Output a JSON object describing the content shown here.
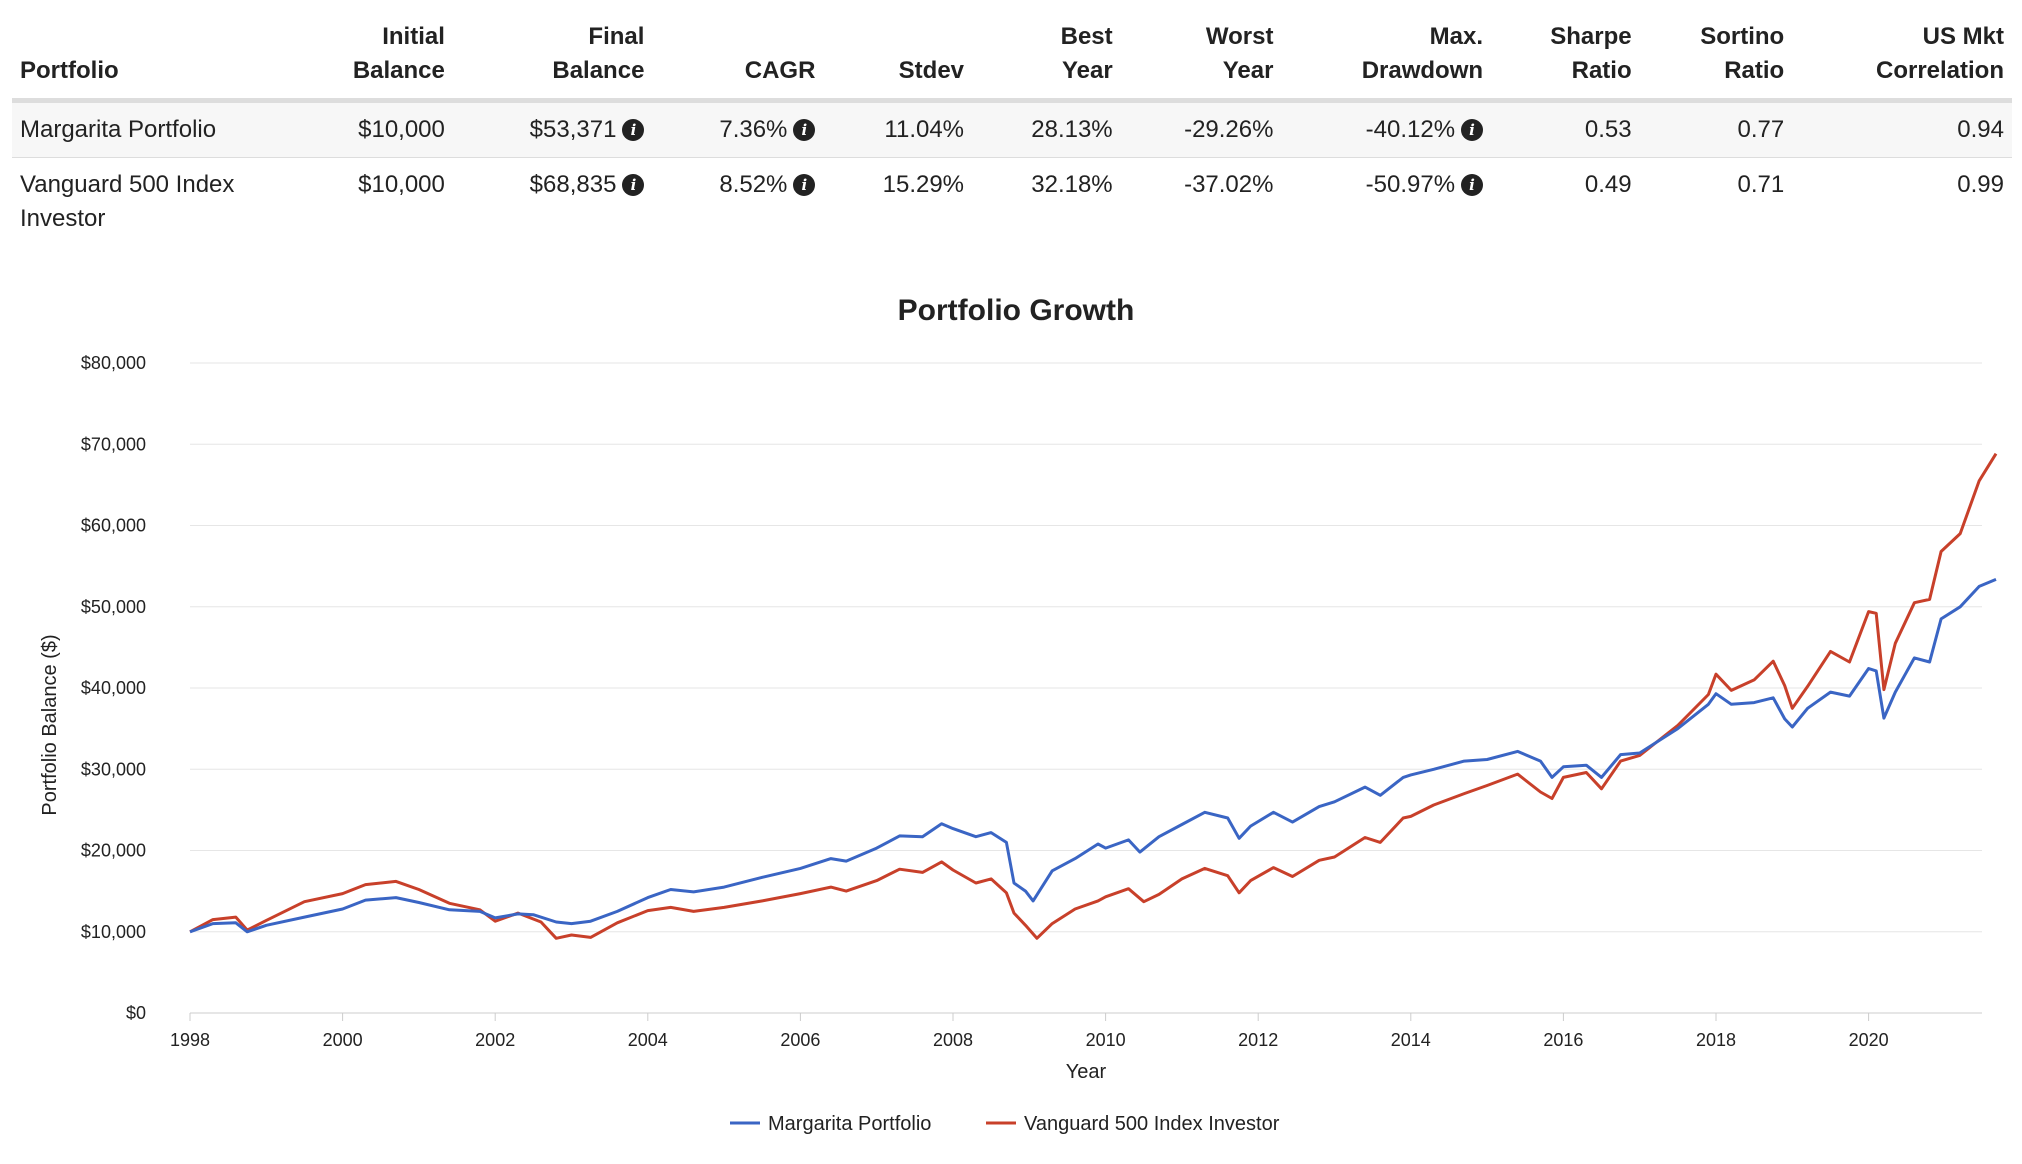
{
  "table": {
    "headers": [
      [
        "",
        "Portfolio"
      ],
      [
        "Initial",
        "Balance"
      ],
      [
        "Final",
        "Balance"
      ],
      [
        "",
        "CAGR"
      ],
      [
        "",
        "Stdev"
      ],
      [
        "Best",
        "Year"
      ],
      [
        "Worst",
        "Year"
      ],
      [
        "Max.",
        "Drawdown"
      ],
      [
        "Sharpe",
        "Ratio"
      ],
      [
        "Sortino",
        "Ratio"
      ],
      [
        "US Mkt",
        "Correlation"
      ]
    ],
    "rows": [
      {
        "portfolio": "Margarita Portfolio",
        "initial": "$10,000",
        "final": "$53,371",
        "cagr": "7.36%",
        "stdev": "11.04%",
        "best": "28.13%",
        "worst": "-29.26%",
        "maxdd": "-40.12%",
        "sharpe": "0.53",
        "sortino": "0.77",
        "corr": "0.94"
      },
      {
        "portfolio": "Vanguard 500 Index Investor",
        "initial": "$10,000",
        "final": "$68,835",
        "cagr": "8.52%",
        "stdev": "15.29%",
        "best": "32.18%",
        "worst": "-37.02%",
        "maxdd": "-50.97%",
        "sharpe": "0.49",
        "sortino": "0.71",
        "corr": "0.99"
      }
    ],
    "info_icon_glyph": "i"
  },
  "chart_data": {
    "type": "line",
    "title": "Portfolio Growth",
    "xlabel": "Year",
    "ylabel": "Portfolio Balance ($)",
    "xlim": [
      1998,
      2021.7
    ],
    "ylim": [
      0,
      80000
    ],
    "x_ticks": [
      "1998",
      "2000",
      "2002",
      "2004",
      "2006",
      "2008",
      "2010",
      "2012",
      "2014",
      "2016",
      "2018",
      "2020"
    ],
    "y_ticks": [
      "$0",
      "$10,000",
      "$20,000",
      "$30,000",
      "$40,000",
      "$50,000",
      "$60,000",
      "$70,000",
      "$80,000"
    ],
    "grid": true,
    "legend_position": "bottom",
    "series": [
      {
        "name": "Margarita Portfolio",
        "color": "#3a65c4",
        "points": [
          [
            1998,
            10000
          ],
          [
            1998.3,
            11000
          ],
          [
            1998.6,
            11100
          ],
          [
            1998.75,
            10000
          ],
          [
            1999,
            10800
          ],
          [
            1999.5,
            11800
          ],
          [
            2000,
            12800
          ],
          [
            2000.3,
            13900
          ],
          [
            2000.7,
            14200
          ],
          [
            2001,
            13600
          ],
          [
            2001.4,
            12700
          ],
          [
            2001.8,
            12500
          ],
          [
            2002,
            11700
          ],
          [
            2002.3,
            12200
          ],
          [
            2002.5,
            12100
          ],
          [
            2002.8,
            11200
          ],
          [
            2003,
            11000
          ],
          [
            2003.25,
            11300
          ],
          [
            2003.6,
            12500
          ],
          [
            2004,
            14200
          ],
          [
            2004.3,
            15200
          ],
          [
            2004.6,
            14900
          ],
          [
            2005,
            15500
          ],
          [
            2005.5,
            16700
          ],
          [
            2006,
            17800
          ],
          [
            2006.4,
            19000
          ],
          [
            2006.6,
            18700
          ],
          [
            2007,
            20300
          ],
          [
            2007.3,
            21800
          ],
          [
            2007.6,
            21700
          ],
          [
            2007.85,
            23300
          ],
          [
            2008,
            22700
          ],
          [
            2008.3,
            21700
          ],
          [
            2008.5,
            22200
          ],
          [
            2008.7,
            21000
          ],
          [
            2008.8,
            16000
          ],
          [
            2008.95,
            15000
          ],
          [
            2009.05,
            13800
          ],
          [
            2009.3,
            17500
          ],
          [
            2009.6,
            19000
          ],
          [
            2009.9,
            20800
          ],
          [
            2010,
            20300
          ],
          [
            2010.3,
            21300
          ],
          [
            2010.45,
            19800
          ],
          [
            2010.7,
            21700
          ],
          [
            2011,
            23200
          ],
          [
            2011.3,
            24700
          ],
          [
            2011.6,
            24000
          ],
          [
            2011.75,
            21500
          ],
          [
            2011.9,
            23000
          ],
          [
            2012.2,
            24700
          ],
          [
            2012.45,
            23500
          ],
          [
            2012.8,
            25400
          ],
          [
            2013,
            26000
          ],
          [
            2013.4,
            27800
          ],
          [
            2013.6,
            26800
          ],
          [
            2013.9,
            29000
          ],
          [
            2014,
            29300
          ],
          [
            2014.3,
            30000
          ],
          [
            2014.7,
            31000
          ],
          [
            2015,
            31200
          ],
          [
            2015.4,
            32200
          ],
          [
            2015.7,
            31000
          ],
          [
            2015.85,
            29000
          ],
          [
            2016,
            30300
          ],
          [
            2016.3,
            30500
          ],
          [
            2016.5,
            29000
          ],
          [
            2016.75,
            31800
          ],
          [
            2017,
            32000
          ],
          [
            2017.5,
            35000
          ],
          [
            2017.9,
            38000
          ],
          [
            2018,
            39300
          ],
          [
            2018.2,
            38000
          ],
          [
            2018.5,
            38200
          ],
          [
            2018.75,
            38800
          ],
          [
            2018.9,
            36200
          ],
          [
            2019,
            35200
          ],
          [
            2019.2,
            37500
          ],
          [
            2019.5,
            39500
          ],
          [
            2019.75,
            39000
          ],
          [
            2020,
            42400
          ],
          [
            2020.1,
            42100
          ],
          [
            2020.2,
            36300
          ],
          [
            2020.35,
            39500
          ],
          [
            2020.6,
            43700
          ],
          [
            2020.8,
            43200
          ],
          [
            2020.95,
            48500
          ],
          [
            2021.2,
            50000
          ],
          [
            2021.45,
            52500
          ],
          [
            2021.67,
            53371
          ]
        ]
      },
      {
        "name": "Vanguard 500 Index Investor",
        "color": "#c8402a",
        "points": [
          [
            1998,
            10000
          ],
          [
            1998.3,
            11500
          ],
          [
            1998.6,
            11800
          ],
          [
            1998.75,
            10200
          ],
          [
            1999,
            11400
          ],
          [
            1999.5,
            13700
          ],
          [
            2000,
            14700
          ],
          [
            2000.3,
            15800
          ],
          [
            2000.7,
            16200
          ],
          [
            2001,
            15200
          ],
          [
            2001.4,
            13500
          ],
          [
            2001.8,
            12700
          ],
          [
            2002,
            11300
          ],
          [
            2002.3,
            12300
          ],
          [
            2002.6,
            11200
          ],
          [
            2002.8,
            9200
          ],
          [
            2003,
            9600
          ],
          [
            2003.25,
            9300
          ],
          [
            2003.6,
            11100
          ],
          [
            2004,
            12600
          ],
          [
            2004.3,
            13000
          ],
          [
            2004.6,
            12500
          ],
          [
            2005,
            13000
          ],
          [
            2005.5,
            13800
          ],
          [
            2006,
            14700
          ],
          [
            2006.4,
            15500
          ],
          [
            2006.6,
            15000
          ],
          [
            2007,
            16300
          ],
          [
            2007.3,
            17700
          ],
          [
            2007.6,
            17300
          ],
          [
            2007.85,
            18600
          ],
          [
            2008,
            17600
          ],
          [
            2008.3,
            16000
          ],
          [
            2008.5,
            16500
          ],
          [
            2008.7,
            14800
          ],
          [
            2008.8,
            12300
          ],
          [
            2008.95,
            10800
          ],
          [
            2009.1,
            9200
          ],
          [
            2009.3,
            11000
          ],
          [
            2009.6,
            12800
          ],
          [
            2009.9,
            13800
          ],
          [
            2010,
            14300
          ],
          [
            2010.3,
            15300
          ],
          [
            2010.5,
            13700
          ],
          [
            2010.7,
            14600
          ],
          [
            2011,
            16500
          ],
          [
            2011.3,
            17800
          ],
          [
            2011.6,
            16900
          ],
          [
            2011.75,
            14800
          ],
          [
            2011.9,
            16300
          ],
          [
            2012.2,
            17900
          ],
          [
            2012.45,
            16800
          ],
          [
            2012.8,
            18800
          ],
          [
            2013,
            19200
          ],
          [
            2013.4,
            21600
          ],
          [
            2013.6,
            21000
          ],
          [
            2013.9,
            24000
          ],
          [
            2014,
            24200
          ],
          [
            2014.3,
            25600
          ],
          [
            2014.7,
            27000
          ],
          [
            2015,
            28000
          ],
          [
            2015.4,
            29400
          ],
          [
            2015.7,
            27200
          ],
          [
            2015.85,
            26400
          ],
          [
            2016,
            29000
          ],
          [
            2016.3,
            29600
          ],
          [
            2016.5,
            27600
          ],
          [
            2016.75,
            31000
          ],
          [
            2017,
            31700
          ],
          [
            2017.5,
            35400
          ],
          [
            2017.9,
            39200
          ],
          [
            2018,
            41700
          ],
          [
            2018.2,
            39700
          ],
          [
            2018.5,
            41000
          ],
          [
            2018.75,
            43300
          ],
          [
            2018.9,
            40300
          ],
          [
            2019,
            37500
          ],
          [
            2019.2,
            40200
          ],
          [
            2019.5,
            44500
          ],
          [
            2019.75,
            43200
          ],
          [
            2020,
            49400
          ],
          [
            2020.1,
            49200
          ],
          [
            2020.2,
            39800
          ],
          [
            2020.35,
            45500
          ],
          [
            2020.6,
            50500
          ],
          [
            2020.8,
            50900
          ],
          [
            2020.95,
            56800
          ],
          [
            2021.2,
            59000
          ],
          [
            2021.45,
            65500
          ],
          [
            2021.67,
            68835
          ]
        ]
      }
    ]
  }
}
